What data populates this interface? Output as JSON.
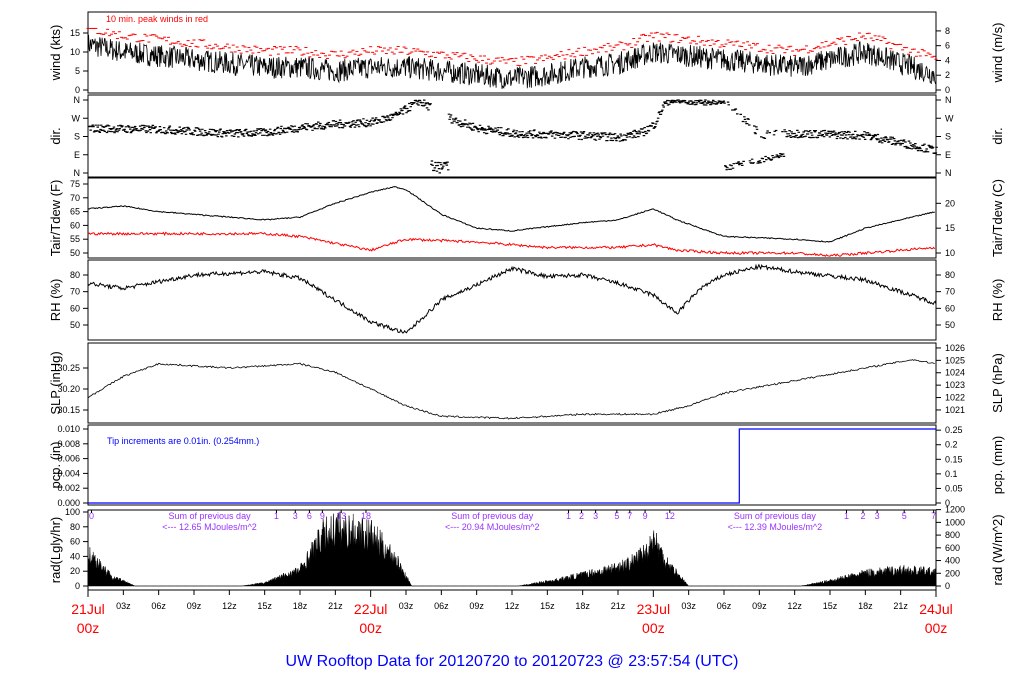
{
  "title": "UW Rooftop Data for 20120720  to  20120723 @ 23:57:54  (UTC)",
  "colors": {
    "line": "#000000",
    "peak": "#ff0000",
    "dewpoint": "#ff0000",
    "precip": "#0000ff",
    "annotation_purple": "#9933ff",
    "date_labels": "#ff0000",
    "title": "#0000ff"
  },
  "chart_data": [
    {
      "type": "line",
      "panel": "wind",
      "ylabel": "wind (kts)",
      "ylabel_right": "wind (m/s)",
      "annotation": "10 min. peak winds in red",
      "yticks": [
        0,
        5,
        10,
        15
      ],
      "yticks_right": [
        0,
        2,
        4,
        6,
        8
      ],
      "series": [
        {
          "name": "10 min. peak winds",
          "color": "#ff0000"
        }
      ],
      "hours": [
        0,
        3,
        6,
        9,
        12,
        15,
        18,
        21,
        24,
        27,
        30,
        33,
        36,
        39,
        42,
        45,
        48,
        51,
        54,
        57,
        60,
        63,
        66,
        69,
        72
      ],
      "values": [
        12,
        10,
        9,
        8,
        7,
        6,
        6,
        5,
        6,
        6,
        5,
        4,
        3,
        4,
        6,
        7,
        10,
        9,
        8,
        7,
        6,
        8,
        10,
        7,
        4
      ]
    },
    {
      "type": "scatter",
      "panel": "dir",
      "ylabel": "dir.",
      "ylabel_right": "dir.",
      "yticks": [
        "N",
        "W",
        "S",
        "E",
        "N"
      ],
      "hours": [
        0,
        6,
        12,
        15,
        18,
        21,
        24,
        26,
        28,
        31,
        33,
        36,
        42,
        45,
        47,
        48,
        49,
        54,
        57,
        60,
        66,
        72
      ],
      "values": [
        220,
        215,
        195,
        200,
        225,
        240,
        250,
        280,
        355,
        260,
        220,
        195,
        185,
        175,
        200,
        240,
        355,
        355,
        190,
        195,
        185,
        110
      ]
    },
    {
      "type": "line",
      "panel": "temp",
      "ylabel": "Tair/Tdew (F)",
      "ylabel_right": "Tair/Tdew (C)",
      "yticks": [
        50,
        55,
        60,
        65,
        70,
        75
      ],
      "yticks_right": [
        10,
        15,
        20
      ],
      "series": [
        {
          "key": "Tair",
          "color": "#000000",
          "hours": [
            0,
            3,
            6,
            12,
            15,
            18,
            21,
            24,
            26,
            27,
            30,
            33,
            36,
            42,
            45,
            48,
            50,
            54,
            60,
            63,
            66,
            72
          ],
          "values": [
            66,
            67,
            65,
            63,
            62,
            63,
            68,
            72,
            74,
            73,
            64,
            59,
            58,
            61,
            62,
            66,
            62,
            56,
            55,
            54,
            59,
            65
          ]
        },
        {
          "key": "Tdew",
          "color": "#ff0000",
          "hours": [
            0,
            15,
            18,
            24,
            27,
            33,
            39,
            45,
            48,
            50,
            54,
            60,
            63,
            72
          ],
          "values": [
            57,
            57,
            56,
            51,
            55,
            54,
            52,
            52,
            53,
            51,
            50,
            50,
            49,
            52
          ]
        }
      ]
    },
    {
      "type": "line",
      "panel": "rh",
      "ylabel": "RH (%)",
      "ylabel_right": "RH (%)",
      "yticks": [
        50,
        60,
        70,
        80
      ],
      "yticks_right": [
        50,
        60,
        70,
        80
      ],
      "hours": [
        0,
        3,
        9,
        15,
        18,
        21,
        24,
        27,
        30,
        33,
        36,
        39,
        42,
        45,
        48,
        50,
        52,
        54,
        57,
        60,
        66,
        72
      ],
      "values": [
        75,
        72,
        80,
        82,
        78,
        65,
        52,
        45,
        65,
        74,
        84,
        79,
        80,
        75,
        68,
        57,
        72,
        80,
        85,
        82,
        77,
        63
      ]
    },
    {
      "type": "line",
      "panel": "slp",
      "ylabel": "SLP (inHg)",
      "ylabel_right": "SLP (hPa)",
      "yticks": [
        "30.15",
        "30.20",
        "30.25"
      ],
      "yticks_right": [
        1021,
        1022,
        1023,
        1024,
        1025,
        1026
      ],
      "hours": [
        0,
        3,
        6,
        12,
        18,
        21,
        24,
        27,
        30,
        36,
        42,
        48,
        51,
        54,
        60,
        66,
        70,
        72
      ],
      "values": [
        30.18,
        30.23,
        30.26,
        30.25,
        30.26,
        30.24,
        30.2,
        30.16,
        30.135,
        30.13,
        30.14,
        30.14,
        30.16,
        30.19,
        30.22,
        30.25,
        30.27,
        30.26
      ]
    },
    {
      "type": "line",
      "panel": "pcp",
      "ylabel": "pcp. (in)",
      "ylabel_right": "pcp. (mm)",
      "annotation": "Tip increments are 0.01in. (0.254mm.)",
      "yticks": [
        "0.000",
        "0.002",
        "0.004",
        "0.006",
        "0.008",
        "0.010"
      ],
      "yticks_right": [
        "0",
        "0.05",
        "0.1",
        "0.15",
        "0.2",
        "0.25"
      ],
      "hours": [
        0,
        55.3,
        55.3,
        72
      ],
      "values": [
        0,
        0,
        0.01,
        0.01
      ]
    },
    {
      "type": "area",
      "panel": "rad",
      "ylabel": "rad(Lgly/hr)",
      "ylabel_right": "rad (W/m^2)",
      "yticks": [
        0,
        20,
        40,
        60,
        80,
        100
      ],
      "yticks_right": [
        0,
        200,
        400,
        600,
        800,
        1000,
        1200
      ],
      "hours": [
        0,
        1,
        2,
        4,
        13,
        15,
        18,
        20,
        21,
        24,
        26,
        27.5,
        36.5,
        40,
        44,
        46,
        47.5,
        48,
        49,
        51,
        60.5,
        63,
        66,
        69,
        72
      ],
      "values": [
        50,
        35,
        15,
        0,
        0,
        5,
        25,
        80,
        90,
        80,
        45,
        0,
        0,
        10,
        25,
        35,
        55,
        75,
        40,
        0,
        0,
        8,
        20,
        25,
        22
      ],
      "cumulative_hour_labels": [
        {
          "hour": 0.3,
          "text": "0"
        },
        {
          "hour": 16,
          "text": "1"
        },
        {
          "hour": 17.6,
          "text": "3"
        },
        {
          "hour": 18.8,
          "text": "6"
        },
        {
          "hour": 19.9,
          "text": "9"
        },
        {
          "hour": 21.5,
          "text": "13"
        },
        {
          "hour": 23.6,
          "text": "18"
        },
        {
          "hour": 40.8,
          "text": "1"
        },
        {
          "hour": 41.9,
          "text": "2"
        },
        {
          "hour": 43.1,
          "text": "3"
        },
        {
          "hour": 44.9,
          "text": "5"
        },
        {
          "hour": 46,
          "text": "7"
        },
        {
          "hour": 47.3,
          "text": "9"
        },
        {
          "hour": 49.4,
          "text": "12"
        },
        {
          "hour": 64.4,
          "text": "1"
        },
        {
          "hour": 65.8,
          "text": "2"
        },
        {
          "hour": 67,
          "text": "3"
        },
        {
          "hour": 69.3,
          "text": "5"
        },
        {
          "hour": 71.8,
          "text": "7"
        }
      ],
      "daily_sums": [
        {
          "hour": 6.5,
          "line1": "Sum of previous day",
          "line2": "<--- 12.65 MJoules/m^2"
        },
        {
          "hour": 30.5,
          "line1": "Sum of previous day",
          "line2": "<--- 20.94 MJoules/m^2"
        },
        {
          "hour": 54.5,
          "line1": "Sum of previous day",
          "line2": "<--- 12.39 MJoules/m^2"
        }
      ]
    }
  ],
  "x_axis": {
    "hour_ticks": [
      "03z",
      "06z",
      "09z",
      "12z",
      "15z",
      "18z",
      "21z"
    ],
    "days": [
      {
        "date": "21Jul",
        "time": "00z"
      },
      {
        "date": "22Jul",
        "time": "00z"
      },
      {
        "date": "23Jul",
        "time": "00z"
      },
      {
        "date": "24Jul",
        "time": "00z"
      }
    ]
  }
}
